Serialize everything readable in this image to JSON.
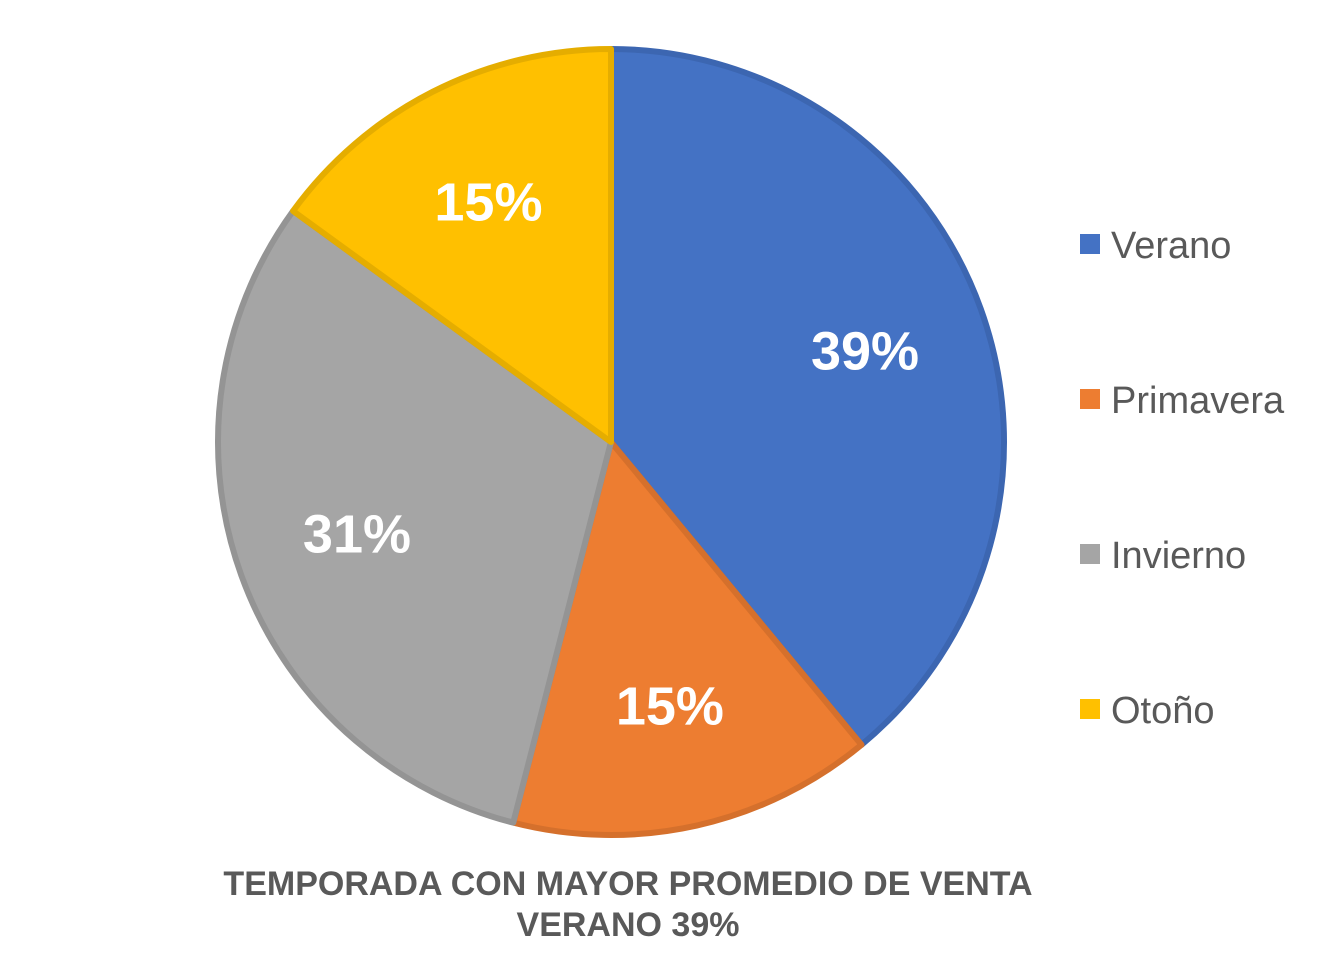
{
  "chart_data": {
    "type": "pie",
    "categories": [
      "Verano",
      "Primavera",
      "Invierno",
      "Otoño"
    ],
    "values": [
      39,
      15,
      31,
      15
    ],
    "data_labels": [
      "39%",
      "15%",
      "31%",
      "15%"
    ],
    "colors": [
      "#4472C4",
      "#ED7D31",
      "#A5A5A5",
      "#FFC000"
    ],
    "border_colors": [
      "#3C66B1",
      "#D5702C",
      "#949494",
      "#E5AD00"
    ],
    "legend": {
      "placement": "right",
      "entries": [
        "Verano",
        "Primavera",
        "Invierno",
        "Otoño"
      ]
    },
    "caption_lines": [
      "TEMPORADA CON MAYOR  PROMEDIO DE VENTA",
      "VERANO 39%"
    ]
  }
}
